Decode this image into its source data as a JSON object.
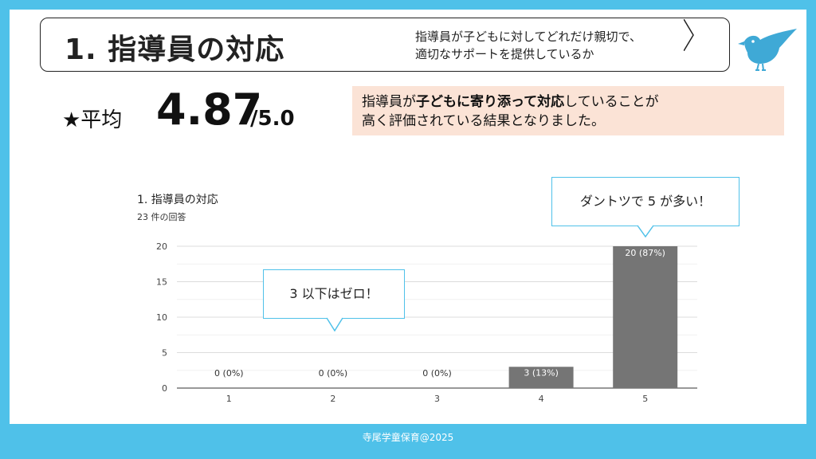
{
  "header": {
    "title": "1. 指導員の対応",
    "description_lines": [
      "指導員が子どもに対してどれだけ親切で、",
      "適切なサポートを提供しているか"
    ]
  },
  "average": {
    "label": "★平均",
    "value": "4.87",
    "max": "/5.0"
  },
  "summary": {
    "line1_parts": [
      "指導員が",
      "子どもに寄り添って対応",
      "していることが"
    ],
    "line2": "高く評価されている結果となりました。"
  },
  "callouts": {
    "top": "ダントツで 5 が多い！",
    "middle": "3 以下はゼロ！"
  },
  "footer": {
    "text": "寺尾学童保育@2025"
  },
  "colors": {
    "frame": "#4fc1e9",
    "bar": "#757575",
    "summary_bg": "#fbe3d6",
    "bird": "#3fa9d6"
  },
  "chart_data": {
    "type": "bar",
    "title": "1. 指導員の対応",
    "subtitle": "23 件の回答",
    "categories": [
      "1",
      "2",
      "3",
      "4",
      "5"
    ],
    "values": [
      0,
      0,
      0,
      3,
      20
    ],
    "data_labels": [
      "0 (0%)",
      "0 (0%)",
      "0 (0%)",
      "3 (13%)",
      "20 (87%)"
    ],
    "yticks": [
      0,
      5,
      10,
      15,
      20
    ],
    "ylim": [
      0,
      20
    ],
    "grid": true
  }
}
